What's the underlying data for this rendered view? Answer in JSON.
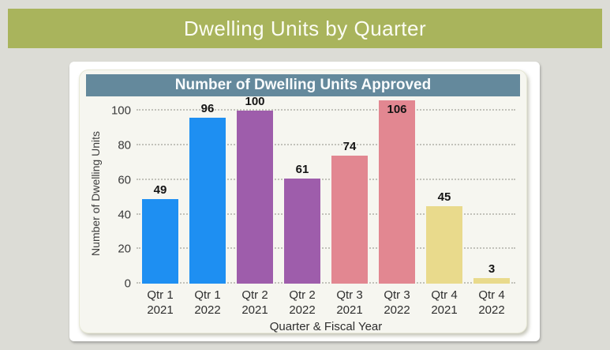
{
  "banner": {
    "title": "Dwelling Units by Quarter",
    "bg_color": "#a9b45c"
  },
  "chart_card": {
    "header": "Number of Dwelling Units Approved",
    "header_bg_color": "#64899c",
    "card_bg_color": "#f6f6f0"
  },
  "chart_data": {
    "type": "bar",
    "title": "Number of Dwelling Units Approved",
    "categories": [
      "Qtr 1 2021",
      "Qtr 1 2022",
      "Qtr 2 2021",
      "Qtr 2 2022",
      "Qtr 3 2021",
      "Qtr 3 2022",
      "Qtr 4 2021",
      "Qtr 4 2022"
    ],
    "values": [
      49,
      96,
      100,
      61,
      74,
      106,
      45,
      3
    ],
    "data_labels": [
      "49",
      "96",
      "100",
      "61",
      "74",
      "106",
      "45",
      "3"
    ],
    "bar_colors": [
      "#1e8ff2",
      "#1e8ff2",
      "#9e5dab",
      "#9e5dab",
      "#e28791",
      "#e28791",
      "#e9da8c",
      "#e9da8c"
    ],
    "xlabel": "Quarter & Fiscal Year",
    "ylabel": "Number of Dwelling Units",
    "ylim": [
      0,
      107
    ],
    "yticks": [
      0,
      20,
      40,
      60,
      80,
      100
    ],
    "grid": "horizontal-dotted",
    "legend": "none"
  }
}
